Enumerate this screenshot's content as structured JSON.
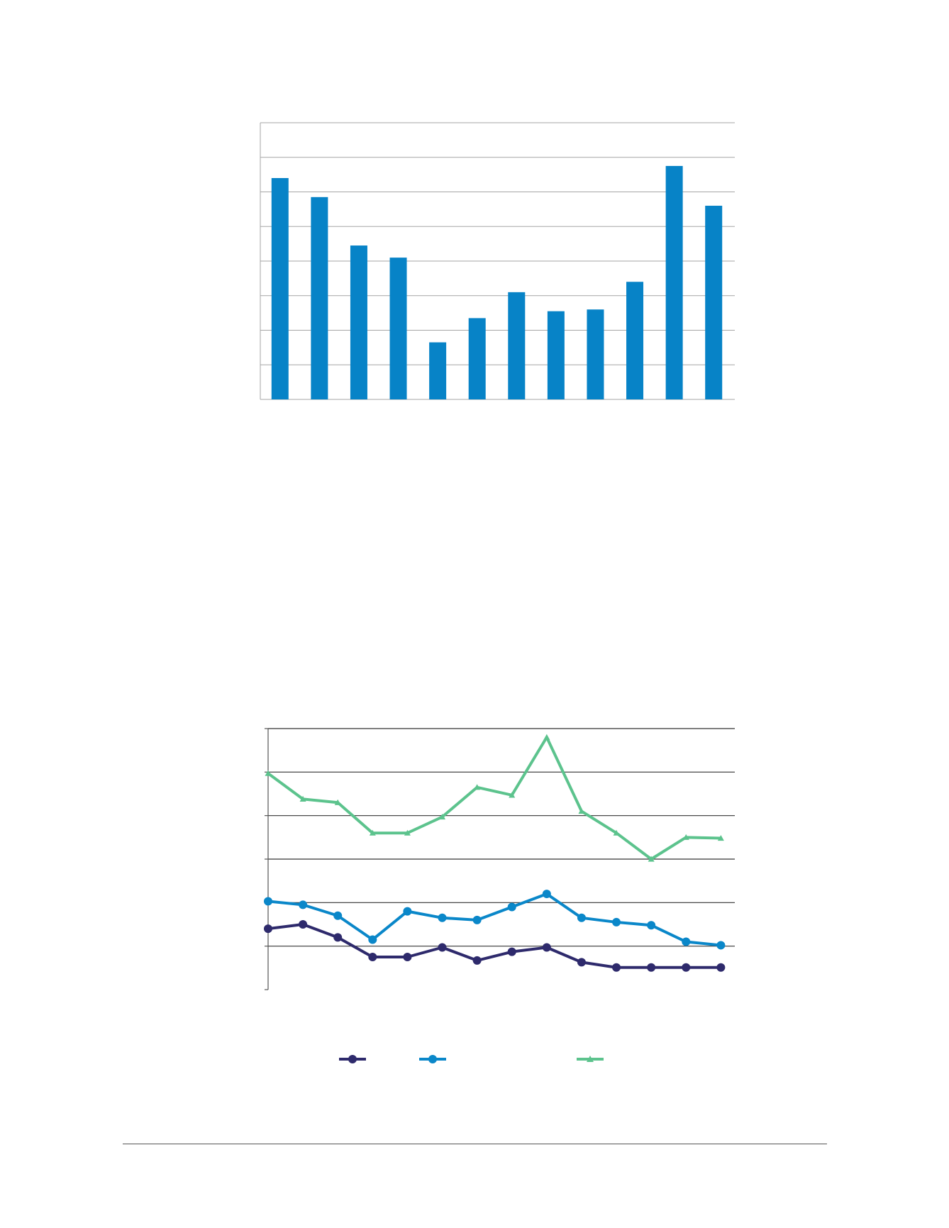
{
  "chart_data": [
    {
      "type": "bar",
      "categories": [
        "",
        "",
        "",
        "",
        "",
        "",
        "",
        "",
        "",
        "",
        "",
        ""
      ],
      "values": [
        6.4,
        5.85,
        4.45,
        4.1,
        1.65,
        2.35,
        3.1,
        2.55,
        2.6,
        3.4,
        6.75,
        5.6
      ],
      "ylim": [
        0,
        8
      ],
      "grid": true,
      "colors": {
        "bar": "#0783c7",
        "grid": "#a6a6a6"
      }
    },
    {
      "type": "line",
      "x": [
        1,
        2,
        3,
        4,
        5,
        6,
        7,
        8,
        9,
        10,
        11,
        12,
        13,
        14
      ],
      "xlim": [
        1,
        14.4
      ],
      "ylim": [
        0,
        6
      ],
      "grid": true,
      "legend": "bottom",
      "series": [
        {
          "values": [
            1.4,
            1.5,
            1.2,
            0.75,
            0.75,
            0.97,
            0.67,
            0.87,
            0.97,
            0.63,
            0.51,
            0.51,
            0.51,
            0.51
          ],
          "color": "#2e2a6c",
          "marker": "circle"
        },
        {
          "values": [
            2.03,
            1.95,
            1.7,
            1.15,
            1.8,
            1.65,
            1.6,
            1.9,
            2.2,
            1.65,
            1.55,
            1.48,
            1.1,
            1.02
          ],
          "color": "#0a87c9",
          "marker": "circle"
        },
        {
          "values": [
            4.97,
            4.38,
            4.3,
            3.6,
            3.6,
            3.97,
            4.65,
            4.47,
            5.8,
            4.1,
            3.6,
            3.0,
            3.5,
            3.48
          ],
          "color": "#5cc38d",
          "marker": "triangle"
        }
      ],
      "colors": {
        "grid": "#333333",
        "axis": "#555555"
      }
    }
  ]
}
